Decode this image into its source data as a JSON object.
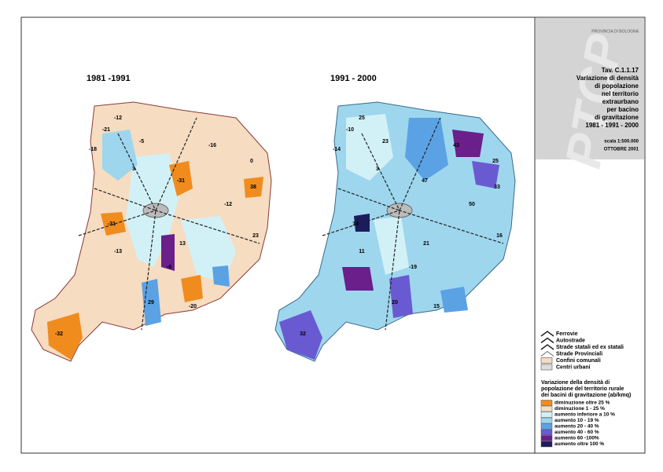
{
  "maps": [
    {
      "title": "1981 -1991",
      "labels": [
        "-12",
        "-21",
        "-18",
        "-5",
        "-16",
        "-31",
        "38",
        "0",
        "-12",
        "-13",
        "13",
        "29",
        "-20",
        "-32",
        "-31",
        "3",
        "-6",
        "23"
      ]
    },
    {
      "title": "1991 - 2000",
      "labels": [
        "25",
        "-10",
        "-14",
        "23",
        "43",
        "47",
        "33",
        "25",
        "50",
        "11",
        "21",
        "20",
        "15",
        "32",
        "14",
        "3",
        "-19",
        "16"
      ]
    }
  ],
  "panel": {
    "header": "PROVINCIA DI BOLOGNA",
    "logo": "PTCP",
    "title_lines": [
      "Tav. C.1.1.17",
      "Variazione di densità",
      "di popolazione",
      "nel territorio",
      "extraurbano",
      "per bacino",
      "di gravitazione",
      "1981 - 1991 - 2000"
    ],
    "scale": "scala 1:500.000",
    "date": "OTTOBRE 2001"
  },
  "legend": {
    "lines": [
      "Ferrovie",
      "Autostrade",
      "Strade statali ed ex statali",
      "Strade Provinciali",
      "Confini comunali",
      "Centri urbani"
    ],
    "heading": [
      "Variazione della densità di",
      "popolazione del territorio rurale",
      "dei bacini di gravitazione (ab/kmq)"
    ],
    "items": [
      {
        "label": "diminuzione oltre 25 %",
        "color": "#f08c1e"
      },
      {
        "label": "diminuzione 1 - 25 %",
        "color": "#f6dcc0"
      },
      {
        "label": "aumento inferiore a 10 %",
        "color": "#d2f1f7"
      },
      {
        "label": "aumento 10 - 19 %",
        "color": "#9ed6ee"
      },
      {
        "label": "aumento 20 - 40 %",
        "color": "#5aa2e4"
      },
      {
        "label": "aumento 40 - 60 %",
        "color": "#6a5ad2"
      },
      {
        "label": "aumento 60 -100%",
        "color": "#6a1f8a"
      },
      {
        "label": "aumento oltre 100 %",
        "color": "#1c1c5c"
      }
    ]
  }
}
